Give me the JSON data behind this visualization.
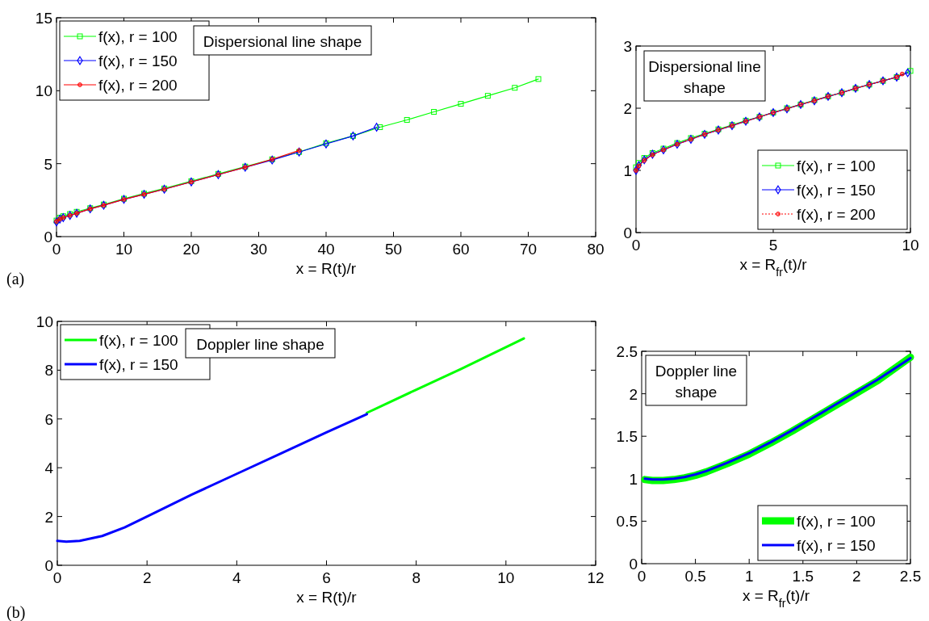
{
  "chart_data": [
    {
      "type": "line",
      "xlabel": "x = R(t)/r",
      "xlim": [
        0,
        80
      ],
      "ylim": [
        0,
        15
      ],
      "xticks": [
        0,
        10,
        20,
        30,
        40,
        50,
        60,
        70,
        80
      ],
      "yticks": [
        0,
        5,
        10,
        15
      ],
      "legend": "top left",
      "annotations": [
        "Dispersional line shape",
        "(a)"
      ],
      "series": [
        {
          "name": "f(x), r = 100",
          "color": "#00ff00",
          "marker": "square",
          "line_style": "solid",
          "x": [
            0,
            0.5,
            1,
            2,
            3,
            5,
            7,
            10,
            13,
            16,
            20,
            24,
            28,
            32,
            36,
            40,
            44,
            48,
            52,
            56,
            60,
            64,
            68,
            71.5
          ],
          "values": [
            1.1,
            1.3,
            1.4,
            1.55,
            1.7,
            1.95,
            2.2,
            2.6,
            2.95,
            3.3,
            3.8,
            4.3,
            4.8,
            5.3,
            5.8,
            6.4,
            6.9,
            7.5,
            8.0,
            8.55,
            9.1,
            9.65,
            10.2,
            10.8
          ]
        },
        {
          "name": "f(x), r = 150",
          "color": "#0000ff",
          "marker": "diamond",
          "line_style": "solid",
          "x": [
            0,
            0.5,
            1,
            2,
            3,
            5,
            7,
            10,
            13,
            16,
            20,
            24,
            28,
            32,
            36,
            40,
            44,
            47.5
          ],
          "values": [
            1.0,
            1.2,
            1.3,
            1.45,
            1.6,
            1.9,
            2.15,
            2.55,
            2.9,
            3.25,
            3.75,
            4.25,
            4.75,
            5.25,
            5.8,
            6.35,
            6.9,
            7.5
          ]
        },
        {
          "name": "f(x), r = 200",
          "color": "#ff0000",
          "marker": "circle",
          "line_style": "solid",
          "x": [
            0,
            0.5,
            1,
            2,
            3,
            5,
            7,
            10,
            13,
            16,
            20,
            24,
            28,
            32,
            36
          ],
          "values": [
            1.05,
            1.2,
            1.3,
            1.45,
            1.6,
            1.9,
            2.15,
            2.55,
            2.9,
            3.25,
            3.75,
            4.25,
            4.75,
            5.3,
            5.9
          ]
        }
      ]
    },
    {
      "type": "line",
      "xlabel": "x = R$_{fr}$(t)/r",
      "xlim": [
        0,
        10
      ],
      "ylim": [
        0,
        3
      ],
      "xticks": [
        0,
        5,
        10
      ],
      "yticks": [
        0,
        1,
        2,
        3
      ],
      "legend": "bottom right",
      "annotations": [
        "Dispersional line shape"
      ],
      "series": [
        {
          "name": "f(x), r = 100",
          "color": "#00ff00",
          "marker": "square",
          "line_style": "solid",
          "x": [
            0,
            0.1,
            0.3,
            0.6,
            1,
            1.5,
            2,
            2.5,
            3,
            3.5,
            4,
            4.5,
            5,
            5.5,
            6,
            6.5,
            7,
            7.5,
            8,
            8.5,
            9,
            9.5,
            10
          ],
          "values": [
            1.05,
            1.12,
            1.2,
            1.28,
            1.35,
            1.44,
            1.52,
            1.59,
            1.66,
            1.73,
            1.8,
            1.86,
            1.93,
            2.0,
            2.06,
            2.13,
            2.19,
            2.25,
            2.32,
            2.38,
            2.44,
            2.5,
            2.6
          ]
        },
        {
          "name": "f(x), r = 150",
          "color": "#0000ff",
          "marker": "diamond",
          "line_style": "solid",
          "x": [
            0,
            0.1,
            0.3,
            0.6,
            1,
            1.5,
            2,
            2.5,
            3,
            3.5,
            4,
            4.5,
            5,
            5.5,
            6,
            6.5,
            7,
            7.5,
            8,
            8.5,
            9,
            9.5,
            9.9
          ],
          "values": [
            1.0,
            1.08,
            1.17,
            1.26,
            1.33,
            1.42,
            1.5,
            1.58,
            1.65,
            1.72,
            1.79,
            1.86,
            1.93,
            1.99,
            2.06,
            2.12,
            2.19,
            2.25,
            2.32,
            2.38,
            2.44,
            2.5,
            2.57
          ]
        },
        {
          "name": "f(x), r = 200",
          "color": "#ff0000",
          "marker": "circle",
          "line_style": "dotted",
          "x": [
            0,
            0.1,
            0.3,
            0.6,
            1,
            1.5,
            2,
            2.5,
            3,
            3.5,
            4,
            4.5,
            5,
            5.5,
            6,
            6.5,
            7,
            7.5,
            8,
            8.5,
            9,
            9.5,
            9.7
          ],
          "values": [
            1.0,
            1.07,
            1.16,
            1.25,
            1.33,
            1.42,
            1.5,
            1.58,
            1.65,
            1.72,
            1.79,
            1.86,
            1.93,
            1.99,
            2.06,
            2.12,
            2.19,
            2.25,
            2.32,
            2.38,
            2.44,
            2.5,
            2.55
          ]
        }
      ]
    },
    {
      "type": "line",
      "xlabel": "x = R(t)/r",
      "xlim": [
        0,
        12
      ],
      "ylim": [
        0,
        10
      ],
      "xticks": [
        0,
        2,
        4,
        6,
        8,
        10,
        12
      ],
      "yticks": [
        0,
        2,
        4,
        6,
        8,
        10
      ],
      "legend": "top left",
      "annotations": [
        "Doppler line shape",
        "(b)"
      ],
      "series": [
        {
          "name": "f(x), r = 100",
          "color": "#00ff00",
          "x": [
            6.9,
            8,
            9,
            10.4
          ],
          "values": [
            6.25,
            7.2,
            8.05,
            9.3
          ]
        },
        {
          "name": "f(x), r = 150",
          "color": "#0000ff",
          "x": [
            0,
            0.2,
            0.5,
            1,
            1.5,
            2,
            3,
            4,
            5,
            6,
            6.9
          ],
          "values": [
            1.0,
            0.97,
            1.0,
            1.2,
            1.55,
            2.0,
            2.9,
            3.75,
            4.6,
            5.45,
            6.2
          ]
        }
      ]
    },
    {
      "type": "line",
      "xlabel": "x = R$_{fr}$(t)/r",
      "xlim": [
        0,
        2.5
      ],
      "ylim": [
        0,
        2.5
      ],
      "xticks": [
        0,
        0.5,
        1,
        1.5,
        2,
        2.5
      ],
      "yticks": [
        0,
        0.5,
        1,
        1.5,
        2,
        2.5
      ],
      "legend": "bottom right",
      "annotations": [
        "Doppler line shape"
      ],
      "series": [
        {
          "name": "f(x), r = 100",
          "color": "#00ff00",
          "x": [
            0.03,
            0.1,
            0.2,
            0.3,
            0.4,
            0.5,
            0.6,
            0.8,
            1,
            1.2,
            1.4,
            1.6,
            1.8,
            2,
            2.2,
            2.5
          ],
          "values": [
            0.99,
            0.98,
            0.98,
            0.99,
            1.01,
            1.04,
            1.08,
            1.18,
            1.29,
            1.42,
            1.56,
            1.71,
            1.86,
            2.01,
            2.16,
            2.43
          ]
        },
        {
          "name": "f(x), r = 150",
          "color": "#0000ff",
          "x": [
            0.03,
            0.1,
            0.2,
            0.3,
            0.4,
            0.5,
            0.6,
            0.8,
            1,
            1.2,
            1.4,
            1.6,
            1.8,
            2,
            2.2,
            2.5
          ],
          "values": [
            1.0,
            0.99,
            0.99,
            1.0,
            1.02,
            1.05,
            1.09,
            1.19,
            1.3,
            1.43,
            1.57,
            1.72,
            1.87,
            2.02,
            2.17,
            2.42
          ]
        }
      ]
    }
  ]
}
